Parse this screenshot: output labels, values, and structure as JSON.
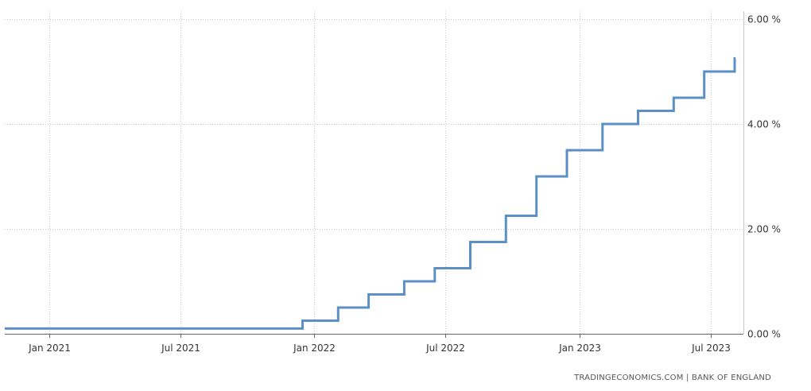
{
  "source_text": "TRADINGECONOMICS.COM  |  BANK OF ENGLAND",
  "colors": {
    "line": "#5b8fc5",
    "grid": "#c8c8c8",
    "axis": "#666666"
  },
  "chart_data": {
    "type": "line",
    "step": true,
    "title": "",
    "xlabel": "",
    "ylabel": "",
    "ylim": [
      0,
      6
    ],
    "xlim": [
      "2020-11-01",
      "2023-08-15"
    ],
    "grid": true,
    "y_axis_side": "right",
    "y_ticks": [
      0,
      2,
      4,
      6
    ],
    "y_tick_labels": [
      "0.00 %",
      "2.00 %",
      "4.00 %",
      "6.00 %"
    ],
    "x_ticks": [
      "2021-01-01",
      "2021-07-01",
      "2022-01-01",
      "2022-07-01",
      "2023-01-01",
      "2023-07-01"
    ],
    "x_tick_labels": [
      "Jan 2021",
      "Jul 2021",
      "Jan 2022",
      "Jul 2022",
      "Jan 2023",
      "Jul 2023"
    ],
    "series": [
      {
        "values": [
          {
            "x": "2020-11-01",
            "y": 0.1
          },
          {
            "x": "2021-12-16",
            "y": 0.25
          },
          {
            "x": "2022-02-03",
            "y": 0.5
          },
          {
            "x": "2022-03-17",
            "y": 0.75
          },
          {
            "x": "2022-05-05",
            "y": 1.0
          },
          {
            "x": "2022-06-16",
            "y": 1.25
          },
          {
            "x": "2022-08-04",
            "y": 1.75
          },
          {
            "x": "2022-09-22",
            "y": 2.25
          },
          {
            "x": "2022-11-03",
            "y": 3.0
          },
          {
            "x": "2022-12-15",
            "y": 3.5
          },
          {
            "x": "2023-02-02",
            "y": 4.0
          },
          {
            "x": "2023-03-23",
            "y": 4.25
          },
          {
            "x": "2023-05-11",
            "y": 4.5
          },
          {
            "x": "2023-06-22",
            "y": 5.0
          },
          {
            "x": "2023-08-03",
            "y": 5.25
          }
        ]
      }
    ]
  }
}
